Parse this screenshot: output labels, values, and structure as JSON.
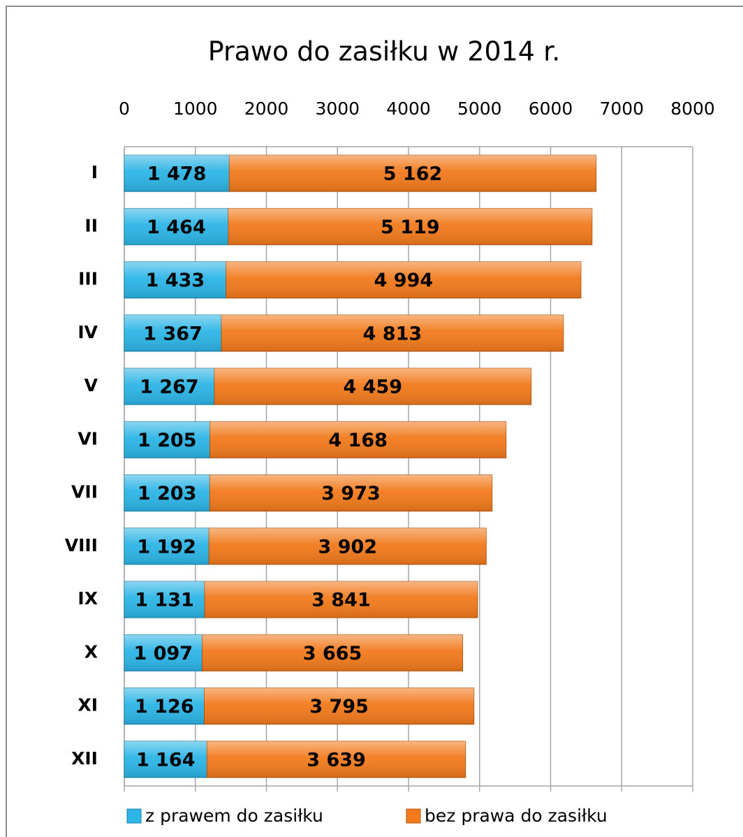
{
  "chart_data": {
    "type": "stacked_barh",
    "title": "Prawo do zasiłku w 2014 r.",
    "categories": [
      "I",
      "II",
      "III",
      "IV",
      "V",
      "VI",
      "VII",
      "VIII",
      "IX",
      "X",
      "XI",
      "XII"
    ],
    "series": [
      {
        "name": "z prawem do zasiłku",
        "color": "#2cb5e6",
        "values": [
          1478,
          1464,
          1433,
          1367,
          1267,
          1205,
          1203,
          1192,
          1131,
          1097,
          1126,
          1164
        ],
        "value_labels": [
          "1 478",
          "1 464",
          "1 433",
          "1 367",
          "1 267",
          "1 205",
          "1 203",
          "1 192",
          "1 131",
          "1 097",
          "1 126",
          "1 164"
        ]
      },
      {
        "name": "bez prawa do zasiłku",
        "color": "#f27a1c",
        "values": [
          5162,
          5119,
          4994,
          4813,
          4459,
          4168,
          3973,
          3902,
          3841,
          3665,
          3795,
          3639
        ],
        "value_labels": [
          "5 162",
          "5 119",
          "4 994",
          "4 813",
          "4 459",
          "4 168",
          "3 973",
          "3 902",
          "3 841",
          "3 665",
          "3 795",
          "3 639"
        ]
      }
    ],
    "xlim": [
      0,
      8000
    ],
    "xticks": [
      0,
      1000,
      2000,
      3000,
      4000,
      5000,
      6000,
      7000,
      8000
    ],
    "grid": true,
    "legend": "bottom"
  }
}
